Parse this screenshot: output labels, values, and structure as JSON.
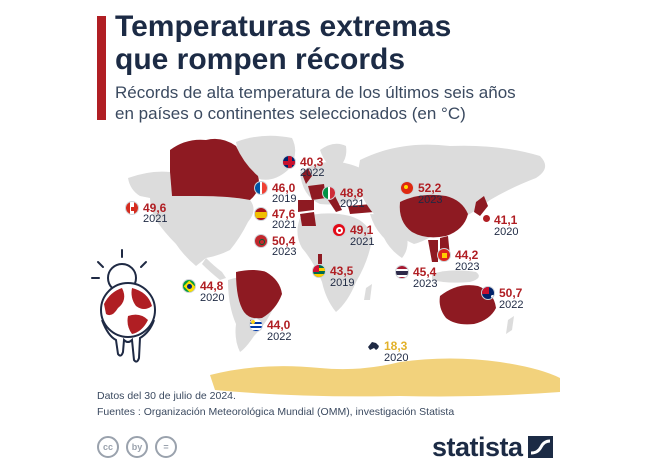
{
  "header": {
    "title_line1": "Temperaturas extremas",
    "title_line2": "que rompen récords",
    "subtitle_line1": "Récords de alta temperatura de los últimos seis años",
    "subtitle_line2": "en países o continentes seleccionados (en °C)"
  },
  "colors": {
    "accent": "#b01e23",
    "map_land": "#dcdcdc",
    "highlight": "#8e1a22",
    "antarctica": "#f2d27c"
  },
  "icon": "melting-globe-sun-icon",
  "chart_data": {
    "type": "map",
    "title": "Temperaturas extremas que rompen récords",
    "subtitle": "Récords de alta temperatura de los últimos seis años en países o continentes seleccionados (en °C)",
    "records": [
      {
        "flag": "canada",
        "value": "49,6",
        "year": "2021"
      },
      {
        "flag": "united-kingdom",
        "value": "40,3",
        "year": "2022"
      },
      {
        "flag": "france",
        "value": "46,0",
        "year": "2019"
      },
      {
        "flag": "spain",
        "value": "47,6",
        "year": "2021"
      },
      {
        "flag": "morocco",
        "value": "50,4",
        "year": "2023"
      },
      {
        "flag": "italy",
        "value": "48,8",
        "year": "2021"
      },
      {
        "flag": "turkey",
        "value": "49,1",
        "year": "2021"
      },
      {
        "flag": "togo",
        "value": "43,5",
        "year": "2019"
      },
      {
        "flag": "china",
        "value": "52,2",
        "year": "2023"
      },
      {
        "flag": "japan",
        "value": "41,1",
        "year": "2020"
      },
      {
        "flag": "vietnam",
        "value": "44,2",
        "year": "2023"
      },
      {
        "flag": "thailand",
        "value": "45,4",
        "year": "2023"
      },
      {
        "flag": "brazil",
        "value": "44,8",
        "year": "2020"
      },
      {
        "flag": "uruguay",
        "value": "44,0",
        "year": "2022"
      },
      {
        "flag": "australia",
        "value": "50,7",
        "year": "2022"
      },
      {
        "flag": "antarctica",
        "value": "18,3",
        "year": "2020"
      }
    ]
  },
  "footer": {
    "date_note": "Datos del 30 de julio de 2024.",
    "sources": "Fuentes : Organización Meteorológica Mundial (OMM), investigación Statista",
    "cc_icons": [
      "cc",
      "by",
      "="
    ],
    "logo": "statista"
  }
}
